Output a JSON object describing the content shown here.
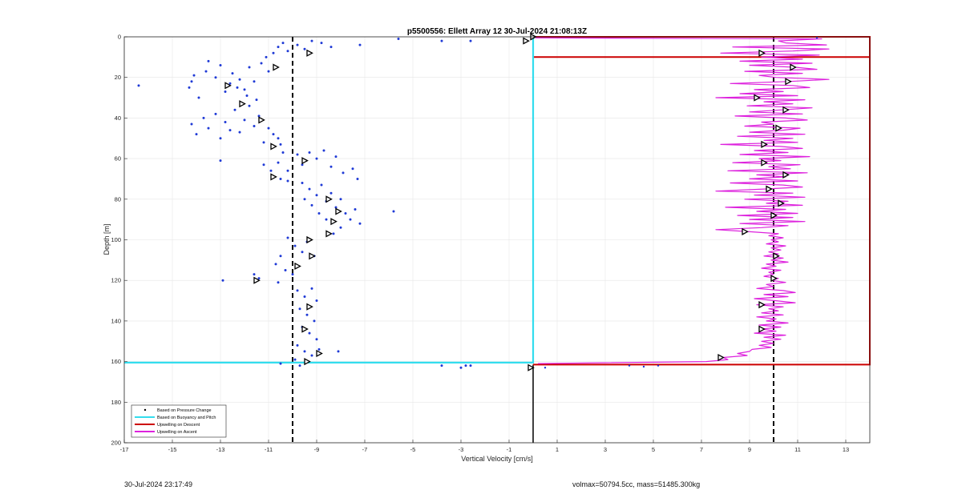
{
  "chart_data": {
    "type": "scatter",
    "title": "p5500556: Ellett Array 12 30-Jul-2024 21:08:13Z",
    "xlabel": "Vertical Velocity [cm/s]",
    "ylabel": "Depth [m]",
    "xlim": [
      -17,
      14
    ],
    "ylim": [
      0,
      200
    ],
    "y_reversed": true,
    "grid": true,
    "legend_position": "bottom-left",
    "x_ticks": [
      "-17",
      "-15",
      "-13",
      "-11",
      "-9",
      "-7",
      "-5",
      "-3",
      "-1",
      "1",
      "3",
      "5",
      "7",
      "9",
      "11",
      "13"
    ],
    "x_tick_values": [
      -17,
      -15,
      -13,
      -11,
      -9,
      -7,
      -5,
      -3,
      -1,
      1,
      3,
      5,
      7,
      9,
      11,
      13
    ],
    "y_ticks": [
      "0",
      "20",
      "40",
      "60",
      "80",
      "100",
      "120",
      "140",
      "160",
      "180",
      "200"
    ],
    "y_tick_values": [
      0,
      20,
      40,
      60,
      80,
      100,
      120,
      140,
      160,
      180,
      200
    ],
    "legend": [
      {
        "label": "Based on Pressure Change",
        "color": "#000000",
        "style": "dot"
      },
      {
        "label": "Based on Buoyancy and Pitch",
        "color": "#33ddee",
        "style": "line"
      },
      {
        "label": "Upwelling on Descent",
        "color": "#cc0000",
        "style": "line"
      },
      {
        "label": "Upwelling on Ascent",
        "color": "#dd22dd",
        "style": "line"
      }
    ],
    "reference_lines": [
      {
        "x": -10,
        "style": "dashed",
        "color": "#000000"
      },
      {
        "x": 10,
        "style": "dashed",
        "color": "#000000"
      }
    ],
    "pressure_change_points": [
      [
        -16.4,
        24
      ],
      [
        -14.3,
        25
      ],
      [
        -14.2,
        22
      ],
      [
        -14.1,
        19
      ],
      [
        -13.9,
        30
      ],
      [
        -13.6,
        17
      ],
      [
        -13.5,
        12
      ],
      [
        -13.2,
        20
      ],
      [
        -13.0,
        14
      ],
      [
        -12.8,
        27
      ],
      [
        -12.6,
        23
      ],
      [
        -12.5,
        18
      ],
      [
        -12.3,
        25
      ],
      [
        -12.2,
        21
      ],
      [
        -12.0,
        26
      ],
      [
        -11.9,
        29
      ],
      [
        -11.8,
        15
      ],
      [
        -11.6,
        22
      ],
      [
        -11.5,
        31
      ],
      [
        -11.3,
        13
      ],
      [
        -11.1,
        10
      ],
      [
        -11.0,
        17
      ],
      [
        -10.8,
        8
      ],
      [
        -10.6,
        5
      ],
      [
        -10.4,
        3
      ],
      [
        -10.2,
        7
      ],
      [
        -9.8,
        4
      ],
      [
        -9.5,
        6
      ],
      [
        -9.2,
        2
      ],
      [
        -8.8,
        3
      ],
      [
        -8.4,
        5
      ],
      [
        -7.2,
        4
      ],
      [
        -5.6,
        1
      ],
      [
        -3.8,
        2
      ],
      [
        -2.6,
        2
      ],
      [
        -14.2,
        43
      ],
      [
        -14.0,
        48
      ],
      [
        -13.7,
        40
      ],
      [
        -13.5,
        45
      ],
      [
        -13.2,
        38
      ],
      [
        -13.0,
        50
      ],
      [
        -12.8,
        42
      ],
      [
        -12.6,
        46
      ],
      [
        -12.4,
        36
      ],
      [
        -12.2,
        47
      ],
      [
        -12.0,
        41
      ],
      [
        -11.8,
        34
      ],
      [
        -11.6,
        44
      ],
      [
        -11.4,
        39
      ],
      [
        -11.2,
        52
      ],
      [
        -11.0,
        45
      ],
      [
        -10.8,
        48
      ],
      [
        -10.6,
        50
      ],
      [
        -10.5,
        53
      ],
      [
        -13.0,
        61
      ],
      [
        -11.2,
        63
      ],
      [
        -10.9,
        66
      ],
      [
        -10.6,
        62
      ],
      [
        -10.4,
        57
      ],
      [
        -10.2,
        71
      ],
      [
        -9.8,
        58
      ],
      [
        -9.6,
        63
      ],
      [
        -9.3,
        57
      ],
      [
        -9.0,
        60
      ],
      [
        -8.7,
        56
      ],
      [
        -8.4,
        64
      ],
      [
        -8.2,
        59
      ],
      [
        -7.9,
        67
      ],
      [
        -7.5,
        65
      ],
      [
        -7.3,
        70
      ],
      [
        -9.6,
        72
      ],
      [
        -9.3,
        75
      ],
      [
        -9.0,
        78
      ],
      [
        -8.8,
        73
      ],
      [
        -8.6,
        81
      ],
      [
        -8.4,
        77
      ],
      [
        -8.2,
        84
      ],
      [
        -8.0,
        80
      ],
      [
        -7.8,
        87
      ],
      [
        -7.6,
        90
      ],
      [
        -7.4,
        85
      ],
      [
        -7.2,
        92
      ],
      [
        -8.0,
        94
      ],
      [
        -8.3,
        97
      ],
      [
        -8.6,
        90
      ],
      [
        -8.9,
        87
      ],
      [
        -9.2,
        83
      ],
      [
        -9.5,
        80
      ],
      [
        -5.8,
        86
      ],
      [
        -10.5,
        70
      ],
      [
        -10.2,
        66
      ],
      [
        -10.2,
        99
      ],
      [
        -9.9,
        103
      ],
      [
        -9.6,
        106
      ],
      [
        -9.4,
        101
      ],
      [
        -9.1,
        108
      ],
      [
        -10.5,
        108
      ],
      [
        -10.7,
        112
      ],
      [
        -10.3,
        115
      ],
      [
        -10.0,
        117
      ],
      [
        -11.6,
        117
      ],
      [
        -11.4,
        119
      ],
      [
        -10.6,
        121
      ],
      [
        -12.9,
        120
      ],
      [
        -9.8,
        125
      ],
      [
        -9.5,
        128
      ],
      [
        -9.2,
        124
      ],
      [
        -9.0,
        130
      ],
      [
        -9.7,
        134
      ],
      [
        -9.4,
        137
      ],
      [
        -9.1,
        140
      ],
      [
        -9.6,
        143
      ],
      [
        -9.3,
        146
      ],
      [
        -9.0,
        149
      ],
      [
        -9.8,
        152
      ],
      [
        -9.5,
        155
      ],
      [
        -9.2,
        157
      ],
      [
        -8.9,
        154
      ],
      [
        -8.1,
        155
      ],
      [
        -9.9,
        159
      ],
      [
        -10.5,
        161
      ],
      [
        -9.7,
        162
      ],
      [
        -3.8,
        162
      ],
      [
        -3.0,
        163
      ],
      [
        -2.6,
        162
      ],
      [
        -2.8,
        162
      ]
    ],
    "pressure_change_triangles": [
      [
        -0.3,
        2
      ],
      [
        -9.3,
        8
      ],
      [
        -10.7,
        15
      ],
      [
        -12.7,
        24
      ],
      [
        -12.1,
        33
      ],
      [
        -11.3,
        41
      ],
      [
        -10.8,
        54
      ],
      [
        -9.5,
        61
      ],
      [
        -10.8,
        69
      ],
      [
        -8.5,
        80
      ],
      [
        -8.1,
        86
      ],
      [
        -8.3,
        91
      ],
      [
        -8.5,
        97
      ],
      [
        -9.3,
        100
      ],
      [
        -9.2,
        108
      ],
      [
        -9.8,
        113
      ],
      [
        -11.5,
        120
      ],
      [
        -9.3,
        133
      ],
      [
        -9.5,
        144
      ],
      [
        -8.9,
        156
      ],
      [
        -9.4,
        160
      ],
      [
        -0.1,
        163
      ]
    ],
    "buoyancy_pitch_line": {
      "color": "#33ddee",
      "points": [
        [
          -17,
          160.5
        ],
        [
          0,
          160.5
        ],
        [
          0,
          10
        ],
        [
          0,
          0
        ]
      ]
    },
    "descent_upwelling_line": {
      "color": "#cc0000",
      "points": [
        [
          14,
          10
        ],
        [
          0,
          10
        ],
        [
          0,
          0
        ],
        [
          14,
          0
        ],
        [
          14,
          161.5
        ],
        [
          0,
          161.5
        ]
      ]
    },
    "ascent_upwelling_line": {
      "color": "#dd22dd",
      "points": [
        [
          0.1,
          0.5
        ],
        [
          12.0,
          1
        ],
        [
          10.2,
          2
        ],
        [
          10.5,
          3
        ],
        [
          12.2,
          4
        ],
        [
          8.3,
          5
        ],
        [
          12.3,
          6
        ],
        [
          10.8,
          7
        ],
        [
          7.8,
          8
        ],
        [
          11.9,
          9
        ],
        [
          9.5,
          10
        ],
        [
          11.2,
          11
        ],
        [
          8.6,
          12
        ],
        [
          11.6,
          13
        ],
        [
          9.0,
          14
        ],
        [
          10.9,
          15
        ],
        [
          11.8,
          16
        ],
        [
          8.8,
          17
        ],
        [
          11.2,
          18
        ],
        [
          9.4,
          19
        ],
        [
          10.1,
          20
        ],
        [
          12.3,
          21
        ],
        [
          10.6,
          22
        ],
        [
          8.2,
          23
        ],
        [
          10.8,
          24
        ],
        [
          11.5,
          25
        ],
        [
          9.2,
          26
        ],
        [
          10.4,
          27
        ],
        [
          8.6,
          28
        ],
        [
          11.0,
          29
        ],
        [
          7.6,
          30
        ],
        [
          11.3,
          31
        ],
        [
          9.6,
          32
        ],
        [
          10.8,
          33
        ],
        [
          8.9,
          34
        ],
        [
          11.6,
          35
        ],
        [
          10.3,
          36
        ],
        [
          9.0,
          37
        ],
        [
          11.2,
          38
        ],
        [
          8.4,
          39
        ],
        [
          10.5,
          40
        ],
        [
          11.4,
          41
        ],
        [
          9.5,
          42
        ],
        [
          10.0,
          43
        ],
        [
          8.8,
          44
        ],
        [
          11.1,
          45
        ],
        [
          10.4,
          46
        ],
        [
          9.0,
          47
        ],
        [
          11.3,
          48
        ],
        [
          8.5,
          49
        ],
        [
          10.8,
          50
        ],
        [
          9.6,
          51
        ],
        [
          11.0,
          52
        ],
        [
          7.8,
          53
        ],
        [
          10.3,
          54
        ],
        [
          11.2,
          55
        ],
        [
          9.2,
          56
        ],
        [
          10.6,
          57
        ],
        [
          8.6,
          58
        ],
        [
          11.5,
          59
        ],
        [
          9.4,
          60
        ],
        [
          10.3,
          61
        ],
        [
          8.3,
          62
        ],
        [
          11.1,
          63
        ],
        [
          9.8,
          64
        ],
        [
          10.7,
          65
        ],
        [
          8.1,
          66
        ],
        [
          11.4,
          67
        ],
        [
          9.3,
          68
        ],
        [
          10.5,
          69
        ],
        [
          9.0,
          70
        ],
        [
          11.0,
          71
        ],
        [
          8.2,
          72
        ],
        [
          10.4,
          73
        ],
        [
          11.2,
          74
        ],
        [
          9.6,
          75
        ],
        [
          7.6,
          76
        ],
        [
          10.8,
          77
        ],
        [
          9.2,
          78
        ],
        [
          11.3,
          79
        ],
        [
          8.8,
          80
        ],
        [
          10.6,
          81
        ],
        [
          9.7,
          82
        ],
        [
          11.2,
          83
        ],
        [
          8.0,
          84
        ],
        [
          10.5,
          85
        ],
        [
          9.3,
          86
        ],
        [
          11.0,
          87
        ],
        [
          8.5,
          88
        ],
        [
          10.8,
          89
        ],
        [
          9.0,
          90
        ],
        [
          11.3,
          91
        ],
        [
          8.6,
          92
        ],
        [
          10.6,
          93
        ],
        [
          9.5,
          94
        ],
        [
          7.6,
          95
        ],
        [
          9.0,
          96
        ],
        [
          10.2,
          97
        ],
        [
          9.8,
          98
        ],
        [
          10.4,
          99
        ],
        [
          9.9,
          100
        ],
        [
          10.2,
          101
        ],
        [
          9.7,
          102
        ],
        [
          10.5,
          103
        ],
        [
          9.9,
          104
        ],
        [
          10.3,
          105
        ],
        [
          9.8,
          106
        ],
        [
          10.2,
          107
        ],
        [
          9.6,
          108
        ],
        [
          10.4,
          109
        ],
        [
          9.9,
          110
        ],
        [
          10.6,
          111
        ],
        [
          9.7,
          112
        ],
        [
          10.1,
          113
        ],
        [
          9.5,
          114
        ],
        [
          10.3,
          115
        ],
        [
          9.8,
          116
        ],
        [
          10.0,
          117
        ],
        [
          9.6,
          118
        ],
        [
          10.2,
          119
        ],
        [
          9.9,
          120
        ],
        [
          10.5,
          121
        ],
        [
          9.7,
          122
        ],
        [
          10.0,
          123
        ],
        [
          9.3,
          124
        ],
        [
          10.4,
          125
        ],
        [
          10.9,
          126
        ],
        [
          9.6,
          127
        ],
        [
          10.6,
          128
        ],
        [
          9.2,
          129
        ],
        [
          10.1,
          130
        ],
        [
          10.9,
          131
        ],
        [
          9.3,
          132
        ],
        [
          10.4,
          133
        ],
        [
          9.8,
          134
        ],
        [
          10.2,
          135
        ],
        [
          9.5,
          136
        ],
        [
          10.4,
          137
        ],
        [
          9.3,
          138
        ],
        [
          10.1,
          139
        ],
        [
          9.7,
          140
        ],
        [
          10.6,
          141
        ],
        [
          9.4,
          142
        ],
        [
          10.3,
          143
        ],
        [
          9.5,
          144
        ],
        [
          10.1,
          145
        ],
        [
          9.2,
          146
        ],
        [
          10.5,
          147
        ],
        [
          9.6,
          148
        ],
        [
          10.3,
          149
        ],
        [
          9.5,
          150
        ],
        [
          10.0,
          151
        ],
        [
          9.4,
          152
        ],
        [
          9.9,
          153
        ],
        [
          9.1,
          154
        ],
        [
          9.0,
          155
        ],
        [
          8.5,
          156
        ],
        [
          8.9,
          157
        ],
        [
          7.9,
          158
        ],
        [
          8.1,
          159
        ],
        [
          7.2,
          160
        ],
        [
          0.2,
          161
        ]
      ]
    },
    "ascent_triangles": [
      [
        0,
        0
      ],
      [
        9.5,
        8
      ],
      [
        10.8,
        15
      ],
      [
        10.6,
        22
      ],
      [
        9.3,
        30
      ],
      [
        10.5,
        36
      ],
      [
        10.2,
        45
      ],
      [
        9.6,
        53
      ],
      [
        9.6,
        62
      ],
      [
        10.5,
        68
      ],
      [
        9.8,
        75
      ],
      [
        10.3,
        82
      ],
      [
        10.0,
        88
      ],
      [
        8.8,
        96
      ],
      [
        10.1,
        108
      ],
      [
        10.0,
        119
      ],
      [
        9.5,
        132
      ],
      [
        9.5,
        144
      ],
      [
        7.8,
        158
      ]
    ]
  },
  "footer": {
    "timestamp": "30-Jul-2024 23:17:49",
    "info": "volmax=50794.5cc, mass=51485.300kg"
  }
}
